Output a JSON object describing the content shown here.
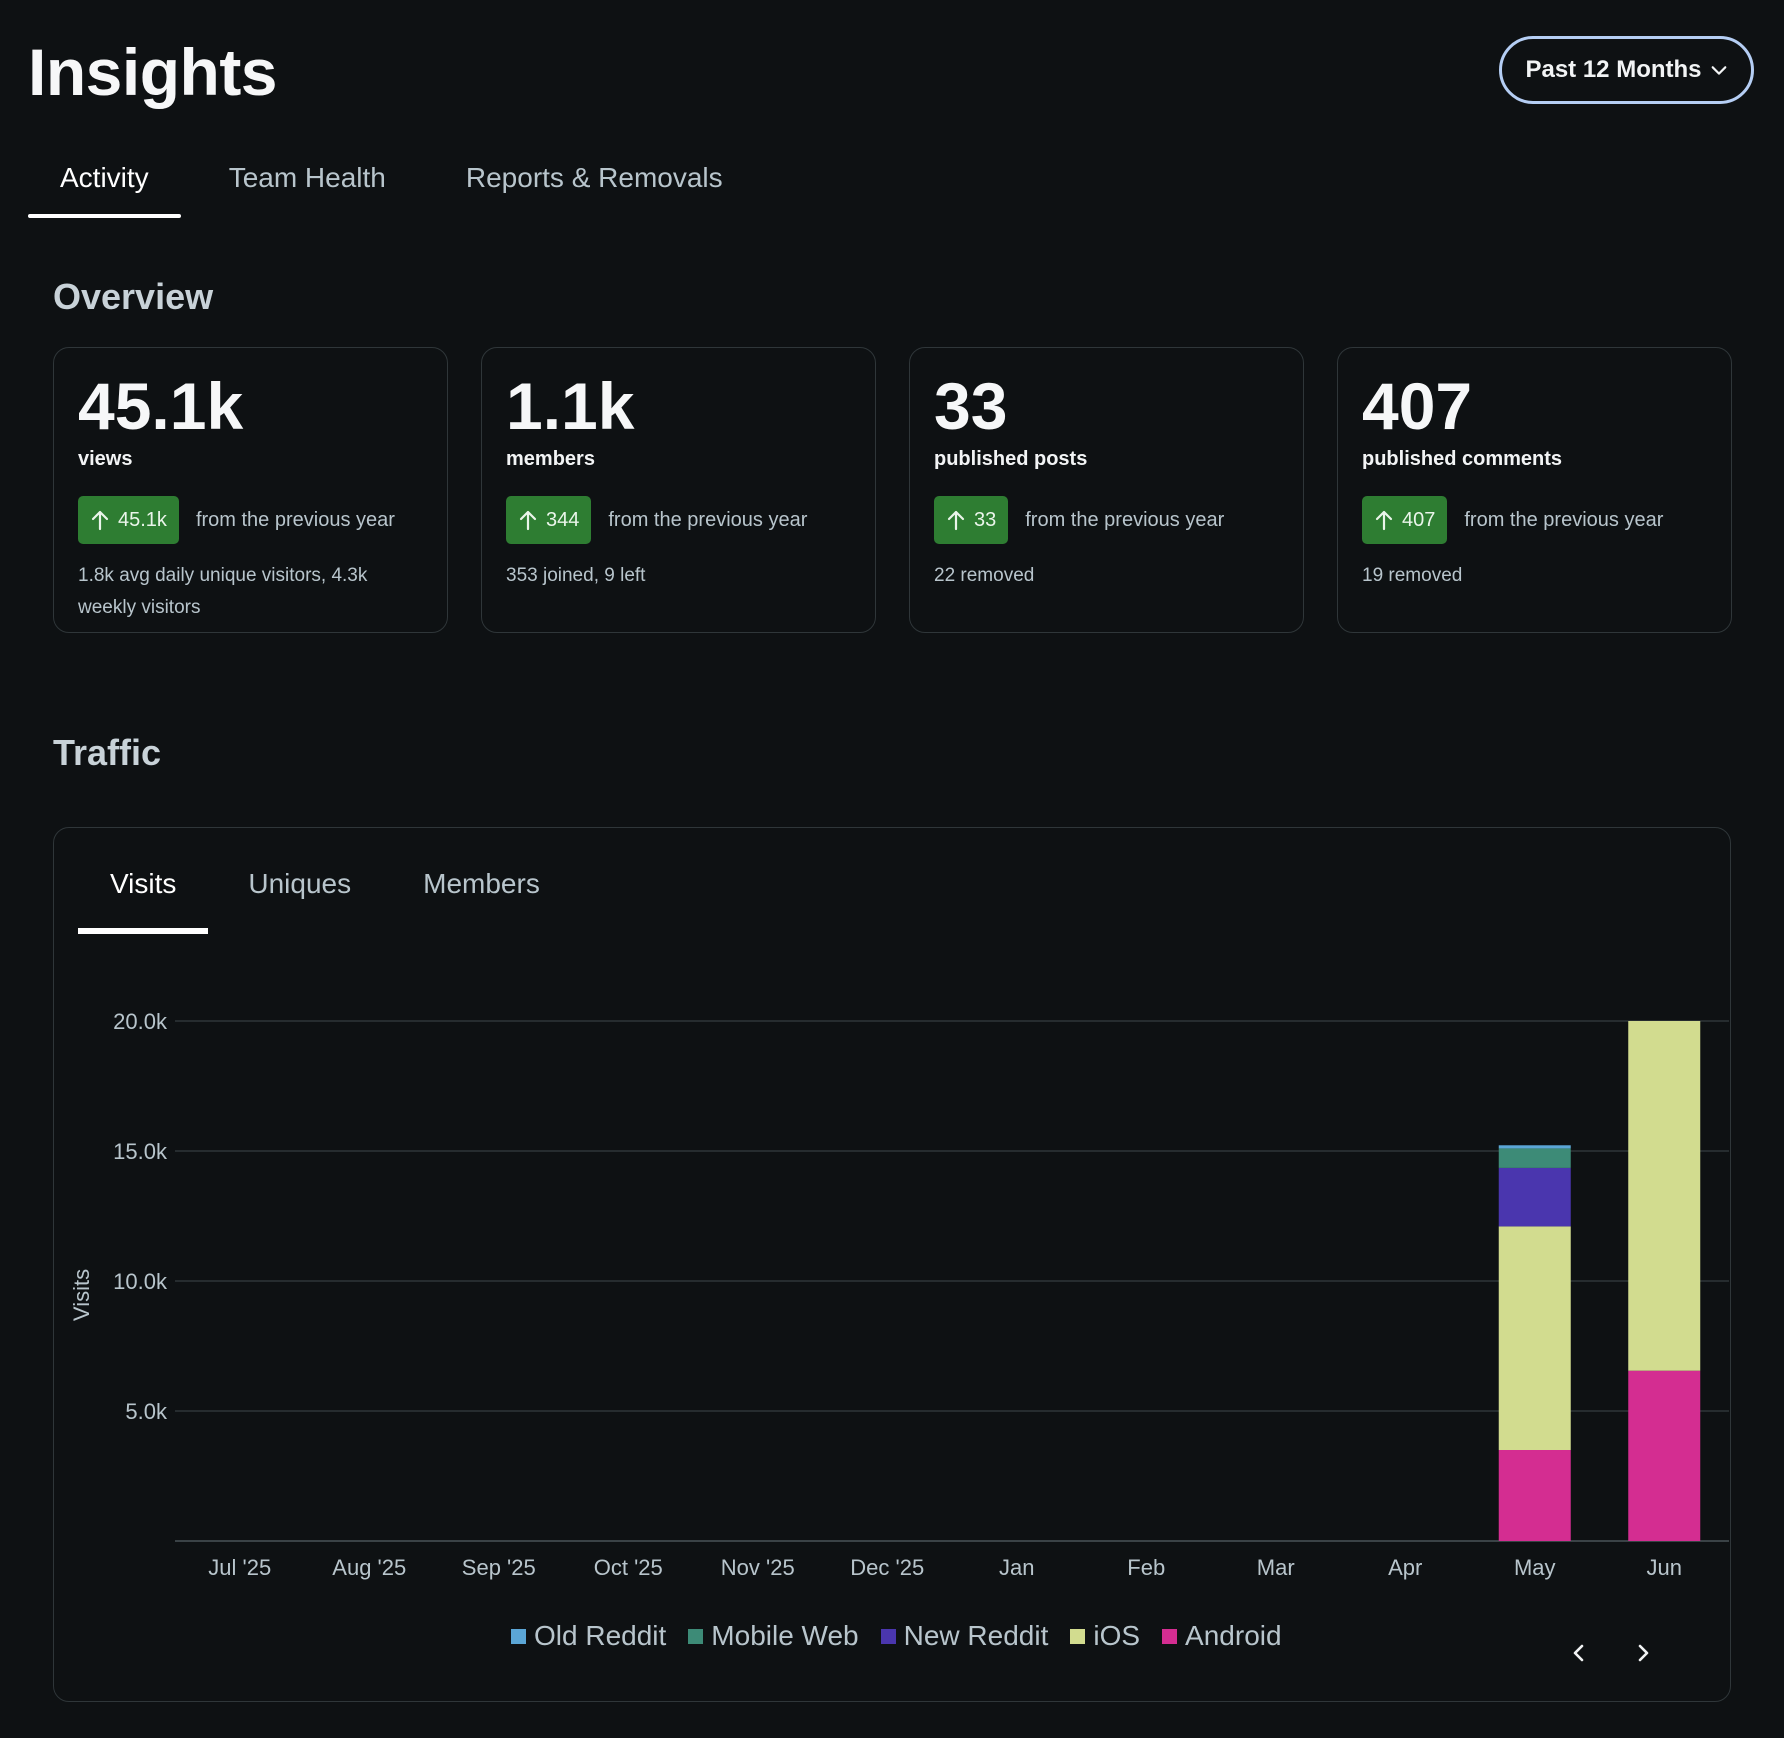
{
  "header": {
    "title": "Insights",
    "range_button": "Past 12 Months"
  },
  "tabs": [
    {
      "label": "Activity",
      "active": true
    },
    {
      "label": "Team Health",
      "active": false
    },
    {
      "label": "Reports & Removals",
      "active": false
    }
  ],
  "overview": {
    "title": "Overview",
    "cards": [
      {
        "value": "45.1k",
        "label": "views",
        "delta": "45.1k",
        "delta_text": "from the previous year",
        "note": "1.8k avg daily unique visitors, 4.3k weekly visitors"
      },
      {
        "value": "1.1k",
        "label": "members",
        "delta": "344",
        "delta_text": "from the previous year",
        "note": "353 joined, 9 left"
      },
      {
        "value": "33",
        "label": "published posts",
        "delta": "33",
        "delta_text": "from the previous year",
        "note": "22 removed"
      },
      {
        "value": "407",
        "label": "published comments",
        "delta": "407",
        "delta_text": "from the previous year",
        "note": "19 removed"
      }
    ]
  },
  "traffic": {
    "title": "Traffic",
    "subtabs": [
      {
        "label": "Visits",
        "active": true
      },
      {
        "label": "Uniques",
        "active": false
      },
      {
        "label": "Members",
        "active": false
      }
    ]
  },
  "chart_data": {
    "type": "bar",
    "stacked": true,
    "ylabel": "Visits",
    "ylim": [
      0,
      20000
    ],
    "yticks": [
      5000,
      10000,
      15000,
      20000
    ],
    "ytick_labels": [
      "5.0k",
      "10.0k",
      "15.0k",
      "20.0k"
    ],
    "grid": true,
    "categories": [
      "Jul '25",
      "Aug '25",
      "Sep '25",
      "Oct '25",
      "Nov '25",
      "Dec '25",
      "Jan",
      "Feb",
      "Mar",
      "Apr",
      "May",
      "Jun"
    ],
    "series": [
      {
        "name": "Android",
        "color": "#d42d91",
        "values": [
          0,
          0,
          0,
          0,
          0,
          0,
          0,
          0,
          0,
          0,
          3500,
          6550
        ]
      },
      {
        "name": "iOS",
        "color": "#d2dc8f",
        "values": [
          0,
          0,
          0,
          0,
          0,
          0,
          0,
          0,
          0,
          0,
          8600,
          13450
        ]
      },
      {
        "name": "New Reddit",
        "color": "#4a36ae",
        "values": [
          0,
          0,
          0,
          0,
          0,
          0,
          0,
          0,
          0,
          0,
          2250,
          0
        ]
      },
      {
        "name": "Mobile Web",
        "color": "#3d8b77",
        "values": [
          0,
          0,
          0,
          0,
          0,
          0,
          0,
          0,
          0,
          0,
          750,
          0
        ]
      },
      {
        "name": "Old Reddit",
        "color": "#5ba6d6",
        "values": [
          0,
          0,
          0,
          0,
          0,
          0,
          0,
          0,
          0,
          0,
          120,
          0
        ]
      }
    ],
    "legend_order": [
      "Old Reddit",
      "Mobile Web",
      "New Reddit",
      "iOS",
      "Android"
    ],
    "legend_position": "bottom"
  },
  "icons": {
    "range_chevron": "chevron-down-icon",
    "delta": "arrow-up-icon",
    "prev": "chevron-left-icon",
    "next": "chevron-right-icon"
  },
  "colors": {
    "background": "#0e1113",
    "badge": "#2e7d32",
    "range_border": "#b5cef4"
  }
}
